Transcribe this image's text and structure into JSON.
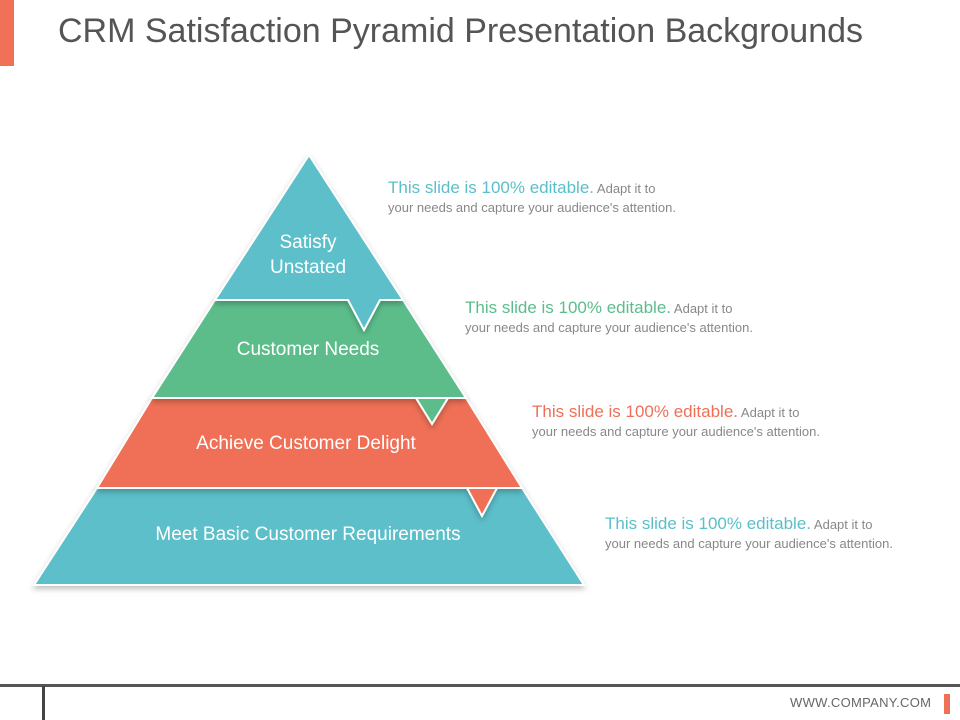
{
  "slide": {
    "title": "CRM Satisfaction Pyramid Presentation Backgrounds",
    "footer": "WWW.COMPANY.COM"
  },
  "colors": {
    "accent": "#f07058",
    "teal": "#5bbfc9",
    "green": "#5bbd8b",
    "coral": "#ef6f57",
    "text_gray": "#888888",
    "title_gray": "#555555"
  },
  "pyramid": {
    "tiers": [
      {
        "label_line1": "Satisfy",
        "label_line2": "Unstated",
        "color": "#5bbfc9"
      },
      {
        "label": "Customer Needs",
        "color": "#5bbd8b"
      },
      {
        "label": "Achieve Customer Delight",
        "color": "#ef6f57"
      },
      {
        "label": "Meet Basic Customer Requirements",
        "color": "#5bbfc9"
      }
    ]
  },
  "descriptions": [
    {
      "headline": "This slide is 100% editable.",
      "body_a": "Adapt it to",
      "body_b": "your needs and capture your audience's attention.",
      "color": "#5bbfc9"
    },
    {
      "headline": "This slide is 100% editable.",
      "body_a": "Adapt it to",
      "body_b": "your needs and capture your audience's attention.",
      "color": "#5bbd8b"
    },
    {
      "headline": "This slide is 100% editable.",
      "body_a": "Adapt it to",
      "body_b": "your needs and capture your audience's attention.",
      "color": "#ef6f57"
    },
    {
      "headline": "This slide is 100% editable.",
      "body_a": "Adapt it to",
      "body_b": "your needs and capture your audience's attention.",
      "color": "#5bbfc9"
    }
  ]
}
